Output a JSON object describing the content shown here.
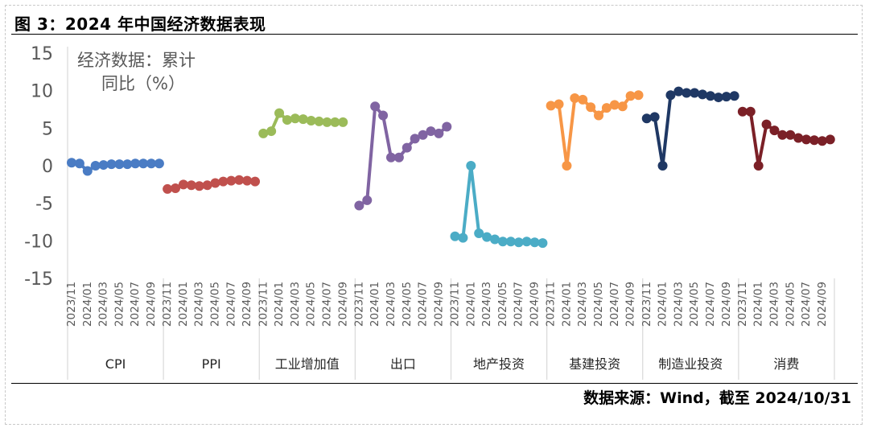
{
  "header": {
    "title": "图 3：2024 年中国经济数据表现"
  },
  "footer": {
    "source": "数据来源：Wind，截至 2024/10/31"
  },
  "chart_data": {
    "type": "line",
    "title": "",
    "ylabel_lines": [
      "经济数据：累计",
      "同比（%）"
    ],
    "ylim": [
      -15,
      15
    ],
    "yticks": [
      "15",
      "10",
      "5",
      "0",
      "-5",
      "-10",
      "-15"
    ],
    "ytick_values": [
      15,
      10,
      5,
      0,
      -5,
      -10,
      -15
    ],
    "grid": false,
    "x_tick_labels": [
      "2023/11",
      "2024/01",
      "2024/03",
      "2024/05",
      "2024/07",
      "2024/09"
    ],
    "x_tick_indices": [
      0,
      2,
      4,
      6,
      8,
      10
    ],
    "period_count": 12,
    "groups": [
      {
        "name": "CPI",
        "color": "#4a7cc4",
        "values": [
          0.4,
          0.3,
          -0.7,
          0.0,
          0.1,
          0.2,
          0.2,
          0.2,
          0.3,
          0.3,
          0.3,
          0.3
        ]
      },
      {
        "name": "PPI",
        "color": "#c0504d",
        "values": [
          -3.1,
          -3.0,
          -2.5,
          -2.6,
          -2.7,
          -2.6,
          -2.3,
          -2.1,
          -2.0,
          -1.9,
          -2.0,
          -2.1
        ]
      },
      {
        "name": "工业增加值",
        "color": "#9bbb59",
        "values": [
          4.3,
          4.6,
          7.0,
          6.1,
          6.3,
          6.2,
          6.0,
          5.9,
          5.8,
          5.8,
          5.8,
          null
        ]
      },
      {
        "name": "出口",
        "color": "#8064a2",
        "values": [
          -5.3,
          -4.6,
          7.9,
          6.7,
          1.1,
          1.1,
          2.4,
          3.6,
          4.1,
          4.6,
          4.3,
          5.2
        ]
      },
      {
        "name": "地产投资",
        "color": "#4bacc6",
        "values": [
          -9.4,
          -9.6,
          0.0,
          -9.0,
          -9.5,
          -9.8,
          -10.1,
          -10.1,
          -10.2,
          -10.1,
          -10.2,
          -10.3
        ]
      },
      {
        "name": "基建投资",
        "color": "#f79646",
        "values": [
          8.0,
          8.2,
          0.0,
          9.0,
          8.8,
          7.8,
          6.7,
          7.7,
          8.1,
          7.9,
          9.3,
          9.4
        ]
      },
      {
        "name": "制造业投资",
        "color": "#1f3864",
        "values": [
          6.3,
          6.5,
          0.0,
          9.4,
          9.9,
          9.7,
          9.7,
          9.5,
          9.3,
          9.1,
          9.2,
          9.3
        ]
      },
      {
        "name": "消费",
        "color": "#7b2027",
        "values": [
          7.2,
          7.2,
          0.0,
          5.5,
          4.7,
          4.1,
          4.1,
          3.7,
          3.5,
          3.4,
          3.3,
          3.5
        ]
      }
    ]
  }
}
